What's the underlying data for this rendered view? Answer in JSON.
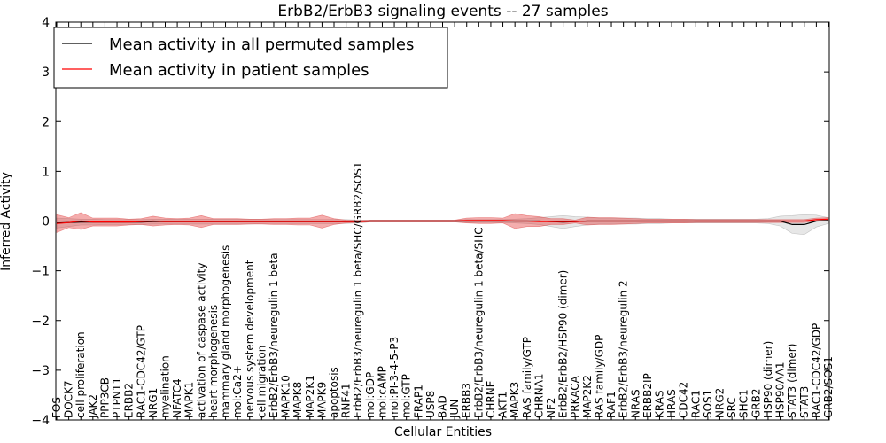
{
  "chart_data": {
    "type": "line",
    "title": "ErbB2/ErbB3 signaling events -- 27 samples",
    "xlabel": "Cellular Entities",
    "ylabel": "Inferred Activity",
    "ylim": [
      -4,
      4
    ],
    "yticks": [
      4,
      3,
      2,
      1,
      0,
      -1,
      -2,
      -3,
      -4
    ],
    "ytick_labels": [
      "4",
      "3",
      "2",
      "1",
      "0",
      "−1",
      "−2",
      "−3",
      "−4"
    ],
    "legend_position": "top-left",
    "categories": [
      "FOS",
      "DOCK7",
      "cell proliferation",
      "JAK2",
      "PPP3CB",
      "PTPN11",
      "ERBB2",
      "RAC1-CDC42/GTP",
      "NRG1",
      "myelination",
      "NFATC4",
      "MAPK1",
      "activation of caspase activity",
      "heart morphogenesis",
      "mammary gland morphogenesis",
      "mol:Ca2+",
      "nervous system development",
      "cell migration",
      "ErbB2/ErbB3/neuregulin 1 beta",
      "MAPK10",
      "MAPK8",
      "MAP2K1",
      "MAPK9",
      "apoptosis",
      "RNF41",
      "ErbB2/ErbB3/neuregulin 1 beta/SHC/GRB2/SOS1",
      "mol:GDP",
      "mol:cAMP",
      "mol:PI-3-4-5-P3",
      "mol:GTP",
      "FRAP1",
      "USP8",
      "BAD",
      "JUN",
      "ERBB3",
      "ErbB2/ErbB3/neuregulin 1 beta/SHC",
      "CHRNE",
      "AKT1",
      "MAPK3",
      "RAS family/GTP",
      "CHRNA1",
      "NF2",
      "ErbB2/ErbB2/HSP90 (dimer)",
      "PRKACA",
      "MAP2K2",
      "RAS family/GDP",
      "RAF1",
      "ErbB2/ErbB3/neuregulin 2",
      "NRAS",
      "ERBB2IP",
      "KRAS",
      "HRAS",
      "CDC42",
      "RAC1",
      "SOS1",
      "NRG2",
      "SRC",
      "SHC1",
      "GRB2",
      "HSP90 (dimer)",
      "HSP90AA1",
      "STAT3 (dimer)",
      "STAT3",
      "RAC1-CDC42/GDP",
      "GRB2/SOS1"
    ],
    "series": [
      {
        "name": "Mean activity in all permuted samples",
        "color": "#000000",
        "values": [
          -0.04,
          -0.03,
          -0.02,
          -0.02,
          -0.02,
          -0.02,
          -0.02,
          -0.02,
          -0.01,
          -0.01,
          -0.01,
          -0.01,
          -0.01,
          -0.01,
          -0.01,
          -0.01,
          -0.01,
          -0.01,
          -0.01,
          -0.01,
          -0.01,
          -0.01,
          -0.01,
          -0.01,
          -0.01,
          -0.01,
          0.0,
          0.0,
          0.0,
          0.0,
          0.0,
          0.0,
          0.0,
          0.0,
          0.0,
          0.0,
          0.0,
          0.0,
          0.0,
          0.0,
          0.0,
          -0.01,
          -0.02,
          -0.01,
          0.0,
          0.0,
          0.0,
          0.0,
          0.0,
          0.0,
          0.0,
          0.0,
          0.0,
          0.0,
          0.0,
          0.0,
          0.0,
          0.0,
          0.0,
          0.0,
          0.0,
          -0.07,
          -0.07,
          0.0,
          0.01
        ],
        "band": [
          0.1,
          0.08,
          0.06,
          0.06,
          0.05,
          0.05,
          0.05,
          0.05,
          0.05,
          0.05,
          0.05,
          0.05,
          0.05,
          0.05,
          0.05,
          0.05,
          0.05,
          0.04,
          0.04,
          0.04,
          0.04,
          0.04,
          0.04,
          0.04,
          0.04,
          0.03,
          0.02,
          0.02,
          0.02,
          0.02,
          0.02,
          0.02,
          0.02,
          0.02,
          0.03,
          0.03,
          0.03,
          0.03,
          0.04,
          0.05,
          0.07,
          0.1,
          0.13,
          0.1,
          0.08,
          0.06,
          0.06,
          0.06,
          0.06,
          0.05,
          0.05,
          0.04,
          0.04,
          0.04,
          0.04,
          0.04,
          0.04,
          0.04,
          0.04,
          0.05,
          0.1,
          0.18,
          0.2,
          0.12,
          0.06
        ]
      },
      {
        "name": "Mean activity in patient samples",
        "color": "#ff0000",
        "values": [
          -0.05,
          -0.03,
          0.0,
          -0.02,
          -0.02,
          -0.02,
          -0.02,
          -0.01,
          0.0,
          -0.01,
          -0.01,
          -0.01,
          -0.01,
          -0.01,
          -0.01,
          -0.01,
          -0.01,
          -0.01,
          -0.01,
          -0.01,
          -0.01,
          -0.01,
          -0.01,
          -0.01,
          -0.01,
          -0.01,
          0.0,
          0.0,
          0.0,
          0.0,
          0.0,
          0.0,
          0.0,
          0.0,
          0.01,
          0.01,
          0.01,
          0.01,
          0.0,
          0.0,
          -0.01,
          -0.01,
          -0.01,
          -0.01,
          0.0,
          0.0,
          0.0,
          0.0,
          0.0,
          0.0,
          0.0,
          0.0,
          0.0,
          0.0,
          0.0,
          0.0,
          0.0,
          0.0,
          0.0,
          0.0,
          0.0,
          0.0,
          0.0,
          0.03,
          0.04
        ],
        "band": [
          0.18,
          0.1,
          0.17,
          0.08,
          0.08,
          0.08,
          0.06,
          0.06,
          0.1,
          0.07,
          0.06,
          0.07,
          0.12,
          0.06,
          0.06,
          0.06,
          0.05,
          0.05,
          0.06,
          0.06,
          0.07,
          0.07,
          0.13,
          0.06,
          0.03,
          0.02,
          0.02,
          0.02,
          0.02,
          0.02,
          0.02,
          0.02,
          0.02,
          0.02,
          0.05,
          0.06,
          0.06,
          0.05,
          0.15,
          0.11,
          0.1,
          0.06,
          0.06,
          0.03,
          0.08,
          0.07,
          0.07,
          0.06,
          0.05,
          0.04,
          0.04,
          0.04,
          0.04,
          0.03,
          0.03,
          0.03,
          0.03,
          0.03,
          0.03,
          0.03,
          0.03,
          0.03,
          0.03,
          0.03,
          0.03
        ]
      }
    ],
    "zero_line_style": "dotted"
  }
}
